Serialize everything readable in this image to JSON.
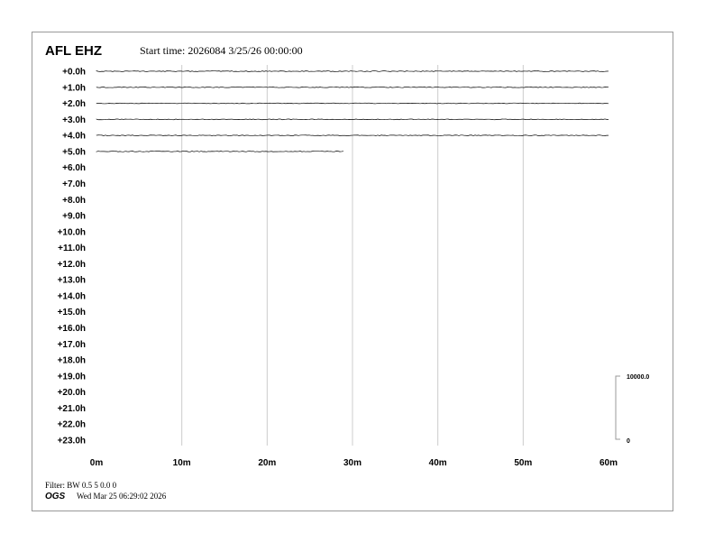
{
  "chart_data": {
    "type": "line",
    "title": "AFL EHZ",
    "subtitle": "Start time: 2026084  3/25/26 00:00:00",
    "row_labels": [
      "+0.0h",
      "+1.0h",
      "+2.0h",
      "+3.0h",
      "+4.0h",
      "+5.0h",
      "+6.0h",
      "+7.0h",
      "+8.0h",
      "+9.0h",
      "+10.0h",
      "+11.0h",
      "+12.0h",
      "+13.0h",
      "+14.0h",
      "+15.0h",
      "+16.0h",
      "+17.0h",
      "+18.0h",
      "+19.0h",
      "+20.0h",
      "+21.0h",
      "+22.0h",
      "+23.0h"
    ],
    "x_ticks": [
      "0m",
      "10m",
      "20m",
      "30m",
      "40m",
      "50m",
      "60m"
    ],
    "xlim": [
      0,
      60
    ],
    "grid": true,
    "trace_end_minutes": [
      60,
      60,
      60,
      60,
      60,
      29
    ],
    "scale_bar": {
      "top": "10000.0",
      "bottom": "0"
    },
    "trace_color": "#000000",
    "grid_color": "#cccccc"
  },
  "footer": {
    "filter": "Filter: BW 0.5 5 0.0 0",
    "logo": "OGS",
    "timestamp": "Wed Mar 25 06:29:02 2026"
  }
}
